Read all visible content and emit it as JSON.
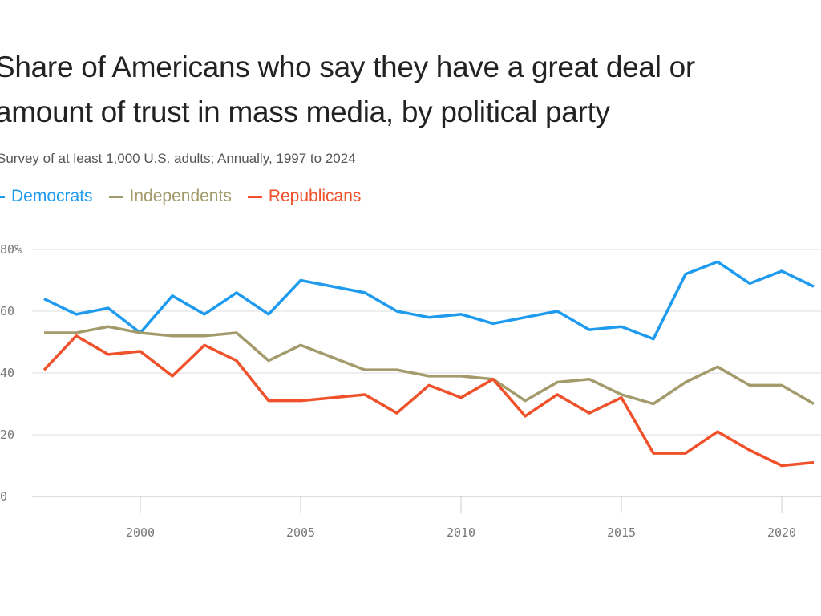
{
  "chart_data": {
    "type": "line",
    "title": "Share of Americans who say they have a great deal or fair amount of trust in mass media, by political party",
    "title_lines": [
      "Share of Americans who say they have a great deal or",
      "amount of trust in mass media, by political party"
    ],
    "subtitle": "Survey of at least 1,000 U.S. adults; Annually, 1997 to 2024",
    "xlim": [
      1996.5,
      2021.2
    ],
    "ylim": [
      0,
      80
    ],
    "grid": true,
    "legend_position": "top-left",
    "y_ticks": [
      {
        "value": 80,
        "label": "80%"
      },
      {
        "value": 60,
        "label": "60"
      },
      {
        "value": 40,
        "label": "40"
      },
      {
        "value": 20,
        "label": "20"
      },
      {
        "value": 0,
        "label": "0"
      }
    ],
    "x_ticks": [
      {
        "value": 2000,
        "label": "2000"
      },
      {
        "value": 2005,
        "label": "2005"
      },
      {
        "value": 2010,
        "label": "2010"
      },
      {
        "value": 2015,
        "label": "2015"
      },
      {
        "value": 2020,
        "label": "2020"
      }
    ],
    "x": [
      1997,
      1998,
      1999,
      2000,
      2001,
      2002,
      2003,
      2004,
      2005,
      2007,
      2008,
      2009,
      2010,
      2011,
      2012,
      2013,
      2014,
      2015,
      2016,
      2017,
      2018,
      2019,
      2020,
      2021
    ],
    "series": [
      {
        "name": "Democrats",
        "color": "#1e9bef",
        "values": [
          64,
          59,
          61,
          53,
          65,
          59,
          66,
          59,
          70,
          66,
          60,
          58,
          59,
          56,
          58,
          60,
          54,
          55,
          51,
          72,
          76,
          69,
          73,
          68
        ]
      },
      {
        "name": "Independents",
        "color": "#a39b6b",
        "values": [
          53,
          53,
          55,
          53,
          52,
          52,
          53,
          44,
          49,
          41,
          41,
          39,
          39,
          38,
          31,
          37,
          38,
          33,
          30,
          37,
          42,
          36,
          36,
          30
        ]
      },
      {
        "name": "Republicans",
        "color": "#f0512a",
        "values": [
          41,
          52,
          46,
          47,
          39,
          49,
          44,
          31,
          31,
          33,
          27,
          36,
          32,
          38,
          26,
          33,
          27,
          32,
          14,
          14,
          21,
          15,
          10,
          11
        ]
      }
    ]
  }
}
